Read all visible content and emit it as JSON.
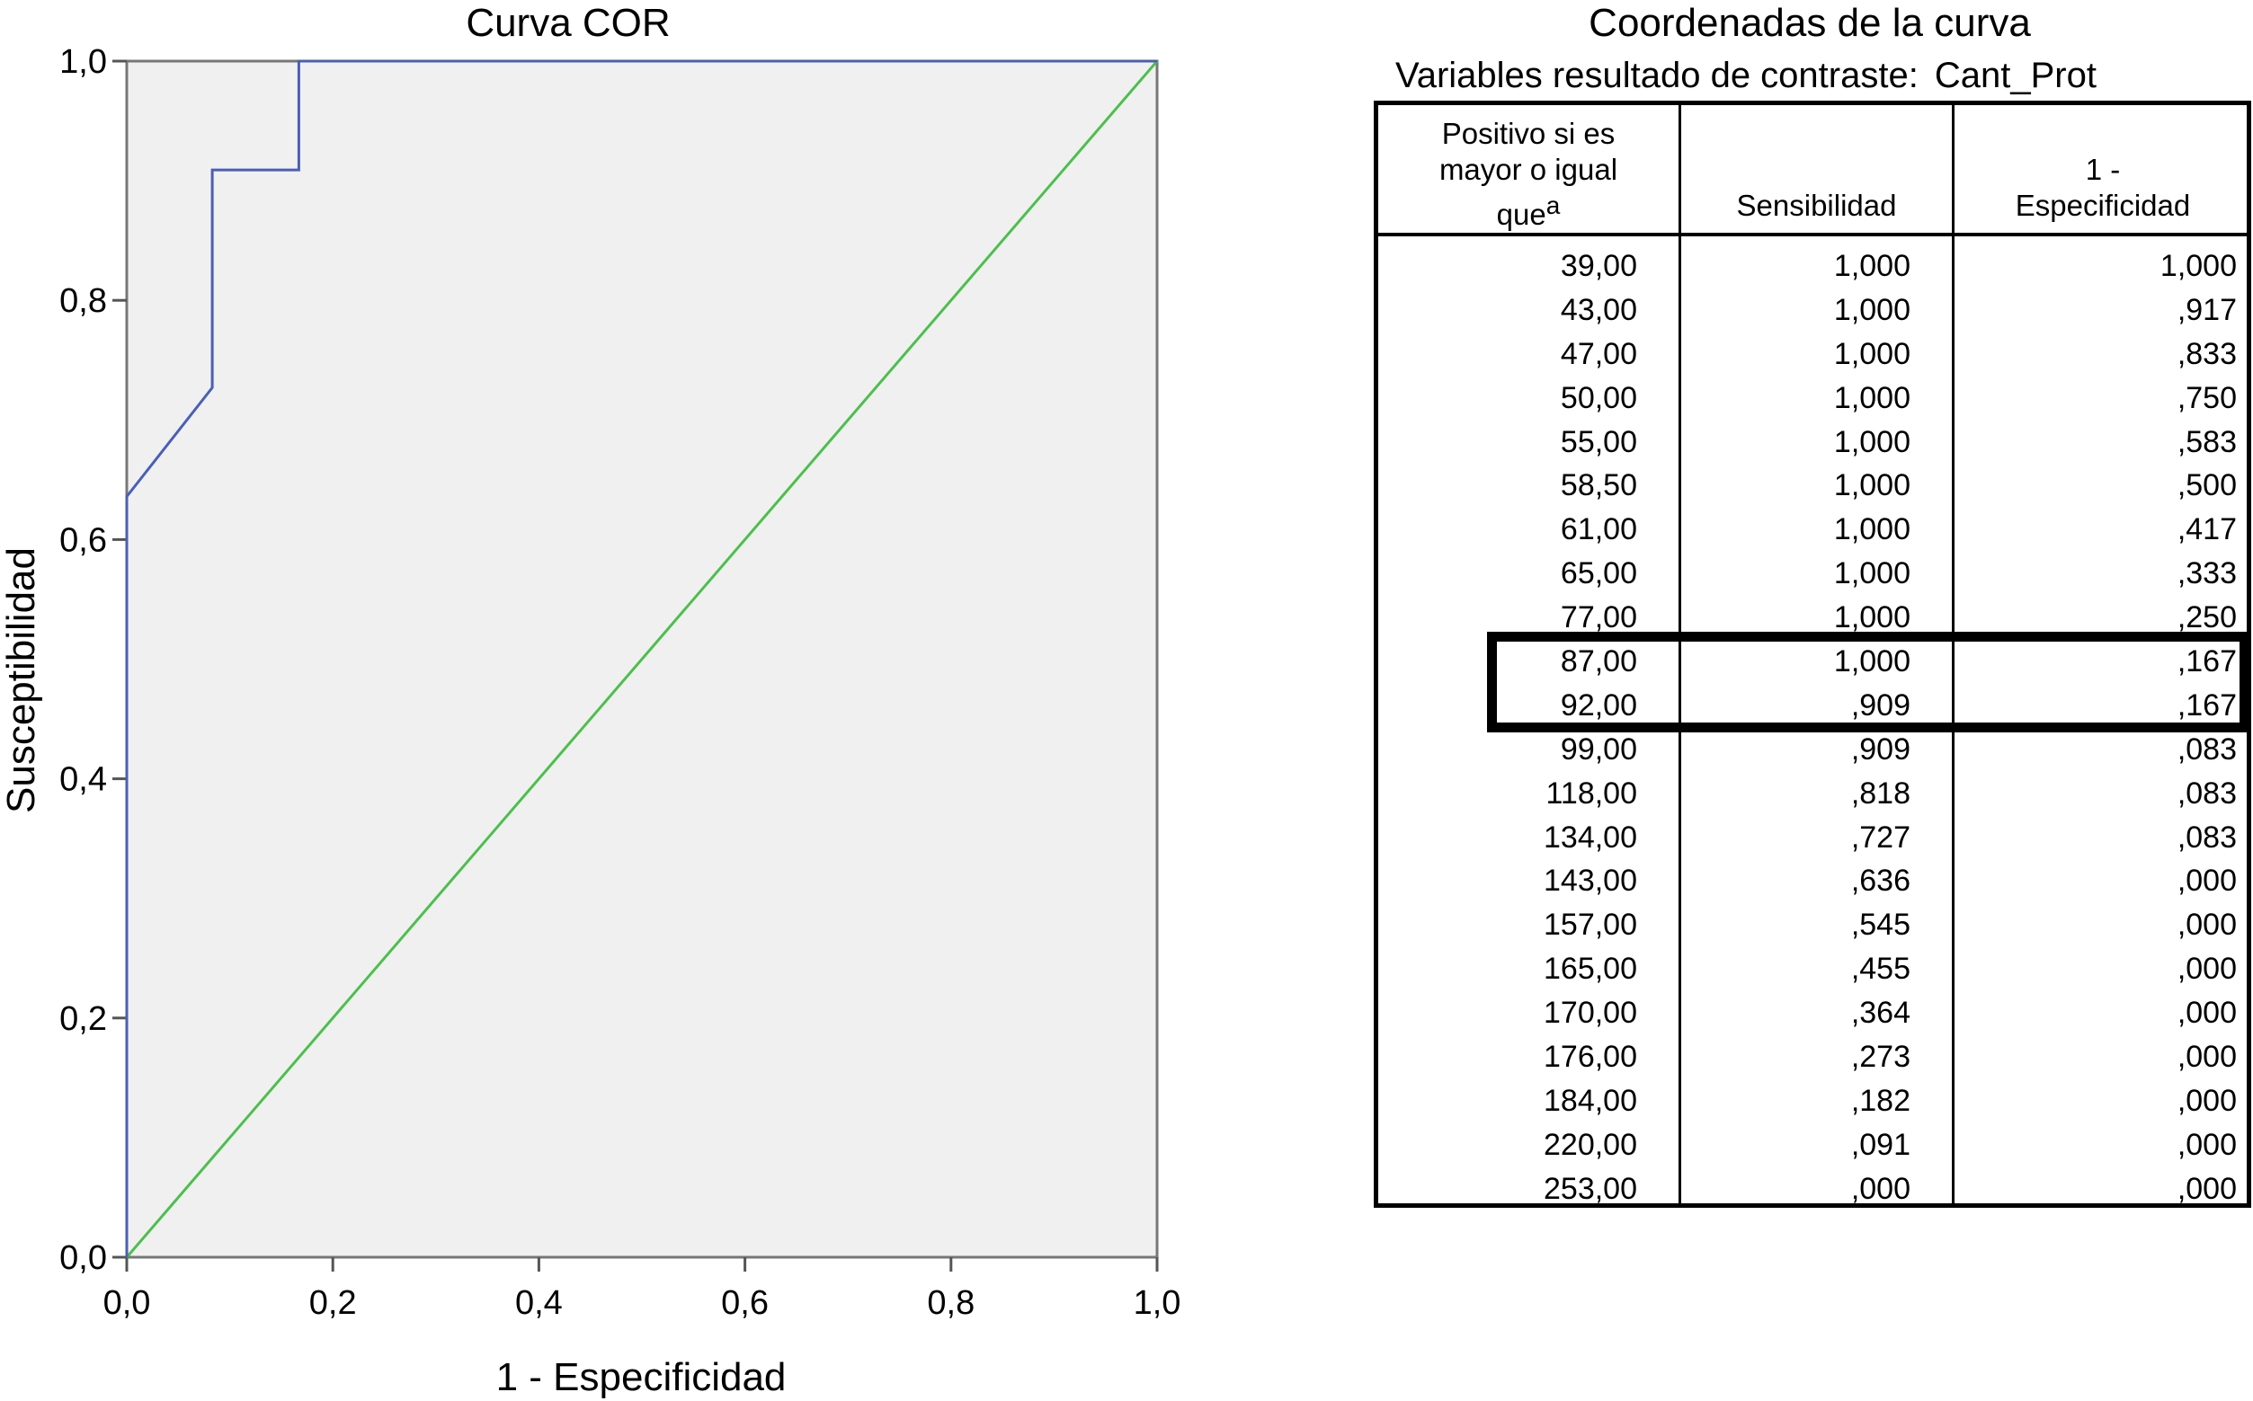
{
  "chart_data": {
    "type": "line",
    "title": "Curva COR",
    "xlabel": "1 - Especificidad",
    "ylabel": "Susceptibilidad",
    "xlim": [
      0,
      1
    ],
    "ylim": [
      0,
      1
    ],
    "x_ticks": [
      "0,0",
      "0,2",
      "0,4",
      "0,6",
      "0,8",
      "1,0"
    ],
    "y_ticks": [
      "0,0",
      "0,2",
      "0,4",
      "0,6",
      "0,8",
      "1,0"
    ],
    "grid": false,
    "series": [
      {
        "color": "#4a5fb5",
        "x": [
          0,
          0,
          0.083,
          0.083,
          0.167,
          0.167,
          0.25,
          0.333,
          0.417,
          0.5,
          0.583,
          0.75,
          0.833,
          0.917,
          1.0
        ],
        "y": [
          0,
          0.636,
          0.727,
          0.909,
          0.909,
          1.0,
          1.0,
          1.0,
          1.0,
          1.0,
          1.0,
          1.0,
          1.0,
          1.0,
          1.0
        ]
      },
      {
        "color": "#4cbf4c",
        "x": [
          0,
          1
        ],
        "y": [
          0,
          1
        ]
      }
    ],
    "plot_background": "#f0f0f0"
  },
  "table": {
    "title": "Coordenadas de la curva",
    "subtitle_label": "Variables resultado de contraste:",
    "subtitle_value": "Cant_Prot",
    "headers": {
      "col0_line1": "Positivo si es",
      "col0_line2": "mayor o igual",
      "col0_line3": "que",
      "col0_sup": "a",
      "col1": "Sensibilidad",
      "col2_line1": "1 -",
      "col2_line2": "Especificidad"
    },
    "rows": [
      [
        "39,00",
        "1,000",
        "1,000"
      ],
      [
        "43,00",
        "1,000",
        ",917"
      ],
      [
        "47,00",
        "1,000",
        ",833"
      ],
      [
        "50,00",
        "1,000",
        ",750"
      ],
      [
        "55,00",
        "1,000",
        ",583"
      ],
      [
        "58,50",
        "1,000",
        ",500"
      ],
      [
        "61,00",
        "1,000",
        ",417"
      ],
      [
        "65,00",
        "1,000",
        ",333"
      ],
      [
        "77,00",
        "1,000",
        ",250"
      ],
      [
        "87,00",
        "1,000",
        ",167"
      ],
      [
        "92,00",
        ",909",
        ",167"
      ],
      [
        "99,00",
        ",909",
        ",083"
      ],
      [
        "118,00",
        ",818",
        ",083"
      ],
      [
        "134,00",
        ",727",
        ",083"
      ],
      [
        "143,00",
        ",636",
        ",000"
      ],
      [
        "157,00",
        ",545",
        ",000"
      ],
      [
        "165,00",
        ",455",
        ",000"
      ],
      [
        "170,00",
        ",364",
        ",000"
      ],
      [
        "176,00",
        ",273",
        ",000"
      ],
      [
        "184,00",
        ",182",
        ",000"
      ],
      [
        "220,00",
        ",091",
        ",000"
      ],
      [
        "253,00",
        ",000",
        ",000"
      ]
    ],
    "highlighted_rows": [
      9,
      10
    ]
  }
}
